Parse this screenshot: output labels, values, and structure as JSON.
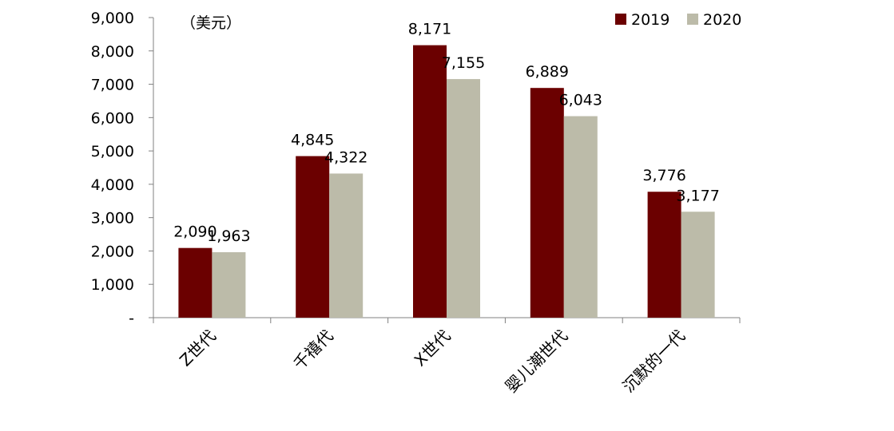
{
  "chart_data": {
    "type": "bar",
    "unit_label": "（美元）",
    "categories": [
      "Z世代",
      "千禧代",
      "X世代",
      "婴儿潮世代",
      "沉默的一代"
    ],
    "series": [
      {
        "name": "2019",
        "color": "#6b0000",
        "values": [
          2090,
          4845,
          8171,
          6889,
          3776
        ],
        "labels": [
          "2,090",
          "4,845",
          "8,171",
          "6,889",
          "3,776"
        ]
      },
      {
        "name": "2020",
        "color": "#bcbba9",
        "values": [
          1963,
          4322,
          7155,
          6043,
          3177
        ],
        "labels": [
          "1,963",
          "4,322",
          "7,155",
          "6,043",
          "3,177"
        ]
      }
    ],
    "ylim": [
      0,
      9000
    ],
    "yticks": [
      0,
      1000,
      2000,
      3000,
      4000,
      5000,
      6000,
      7000,
      8000,
      9000
    ],
    "ytick_labels": [
      "-",
      "1,000",
      "2,000",
      "3,000",
      "4,000",
      "5,000",
      "6,000",
      "7,000",
      "8,000",
      "9,000"
    ],
    "legend_position": "top-right",
    "grid": false
  }
}
